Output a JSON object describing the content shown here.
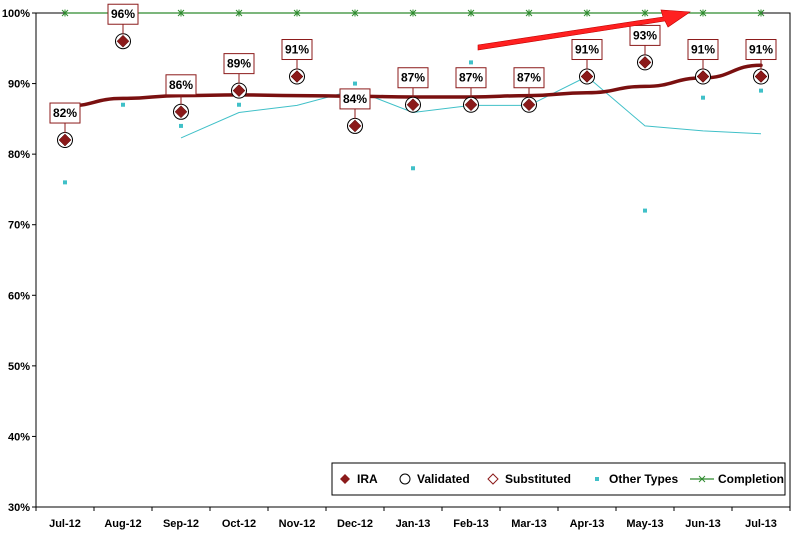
{
  "chart_data": {
    "type": "line",
    "categories": [
      "Jul-12",
      "Aug-12",
      "Sep-12",
      "Oct-12",
      "Nov-12",
      "Dec-12",
      "Jan-13",
      "Feb-13",
      "Mar-13",
      "Apr-13",
      "May-13",
      "Jun-13",
      "Jul-13"
    ],
    "ylim": [
      30,
      100
    ],
    "yticks": [
      30,
      40,
      50,
      60,
      70,
      80,
      90,
      100
    ],
    "ytick_labels": [
      "30%",
      "40%",
      "50%",
      "60%",
      "70%",
      "80%",
      "90%",
      "100%"
    ],
    "title": "",
    "xlabel": "",
    "ylabel": "",
    "grid": false,
    "legend_position": "bottom-right",
    "series": [
      {
        "name": "IRA",
        "marker": "filled-diamond",
        "color": "#8b1a1a",
        "values": [
          82,
          96,
          86,
          89,
          91,
          84,
          87,
          87,
          87,
          91,
          93,
          91,
          91
        ],
        "labels": [
          "82%",
          "96%",
          "86%",
          "89%",
          "91%",
          "84%",
          "87%",
          "87%",
          "87%",
          "91%",
          "93%",
          "91%",
          "91%"
        ]
      },
      {
        "name": "Validated",
        "marker": "open-circle",
        "color": "#000000",
        "values": [
          82,
          96,
          86,
          89,
          91,
          84,
          87,
          87,
          87,
          91,
          93,
          91,
          91
        ]
      },
      {
        "name": "Substituted",
        "marker": "open-diamond",
        "color": "#8b1a1a",
        "values": [
          null,
          null,
          null,
          null,
          null,
          null,
          null,
          null,
          null,
          null,
          null,
          null,
          null
        ]
      },
      {
        "name": "Other Types",
        "marker": "square",
        "color": "#40c0c8",
        "values": [
          76,
          87,
          84,
          87,
          null,
          90,
          78,
          93,
          87,
          null,
          72,
          88,
          89
        ]
      },
      {
        "name": "Completion",
        "marker": "star",
        "color": "#2e8b2e",
        "values": [
          100,
          100,
          100,
          100,
          100,
          100,
          100,
          100,
          100,
          100,
          100,
          100,
          100
        ]
      }
    ],
    "trend_ira": {
      "color": "#7a1010",
      "values": [
        86.8,
        87.9,
        88.3,
        88.4,
        88.3,
        88.2,
        88.1,
        88.1,
        88.3,
        88.7,
        89.6,
        90.8,
        92.6
      ]
    },
    "moving_average_other": {
      "color": "#40c0c8",
      "values": [
        null,
        null,
        82.3,
        85.9,
        86.9,
        89.1,
        85.9,
        86.9,
        86.9,
        91.0,
        84.0,
        83.3,
        82.9
      ]
    },
    "annotation": {
      "type": "arrow",
      "color": "#ff2020"
    }
  }
}
